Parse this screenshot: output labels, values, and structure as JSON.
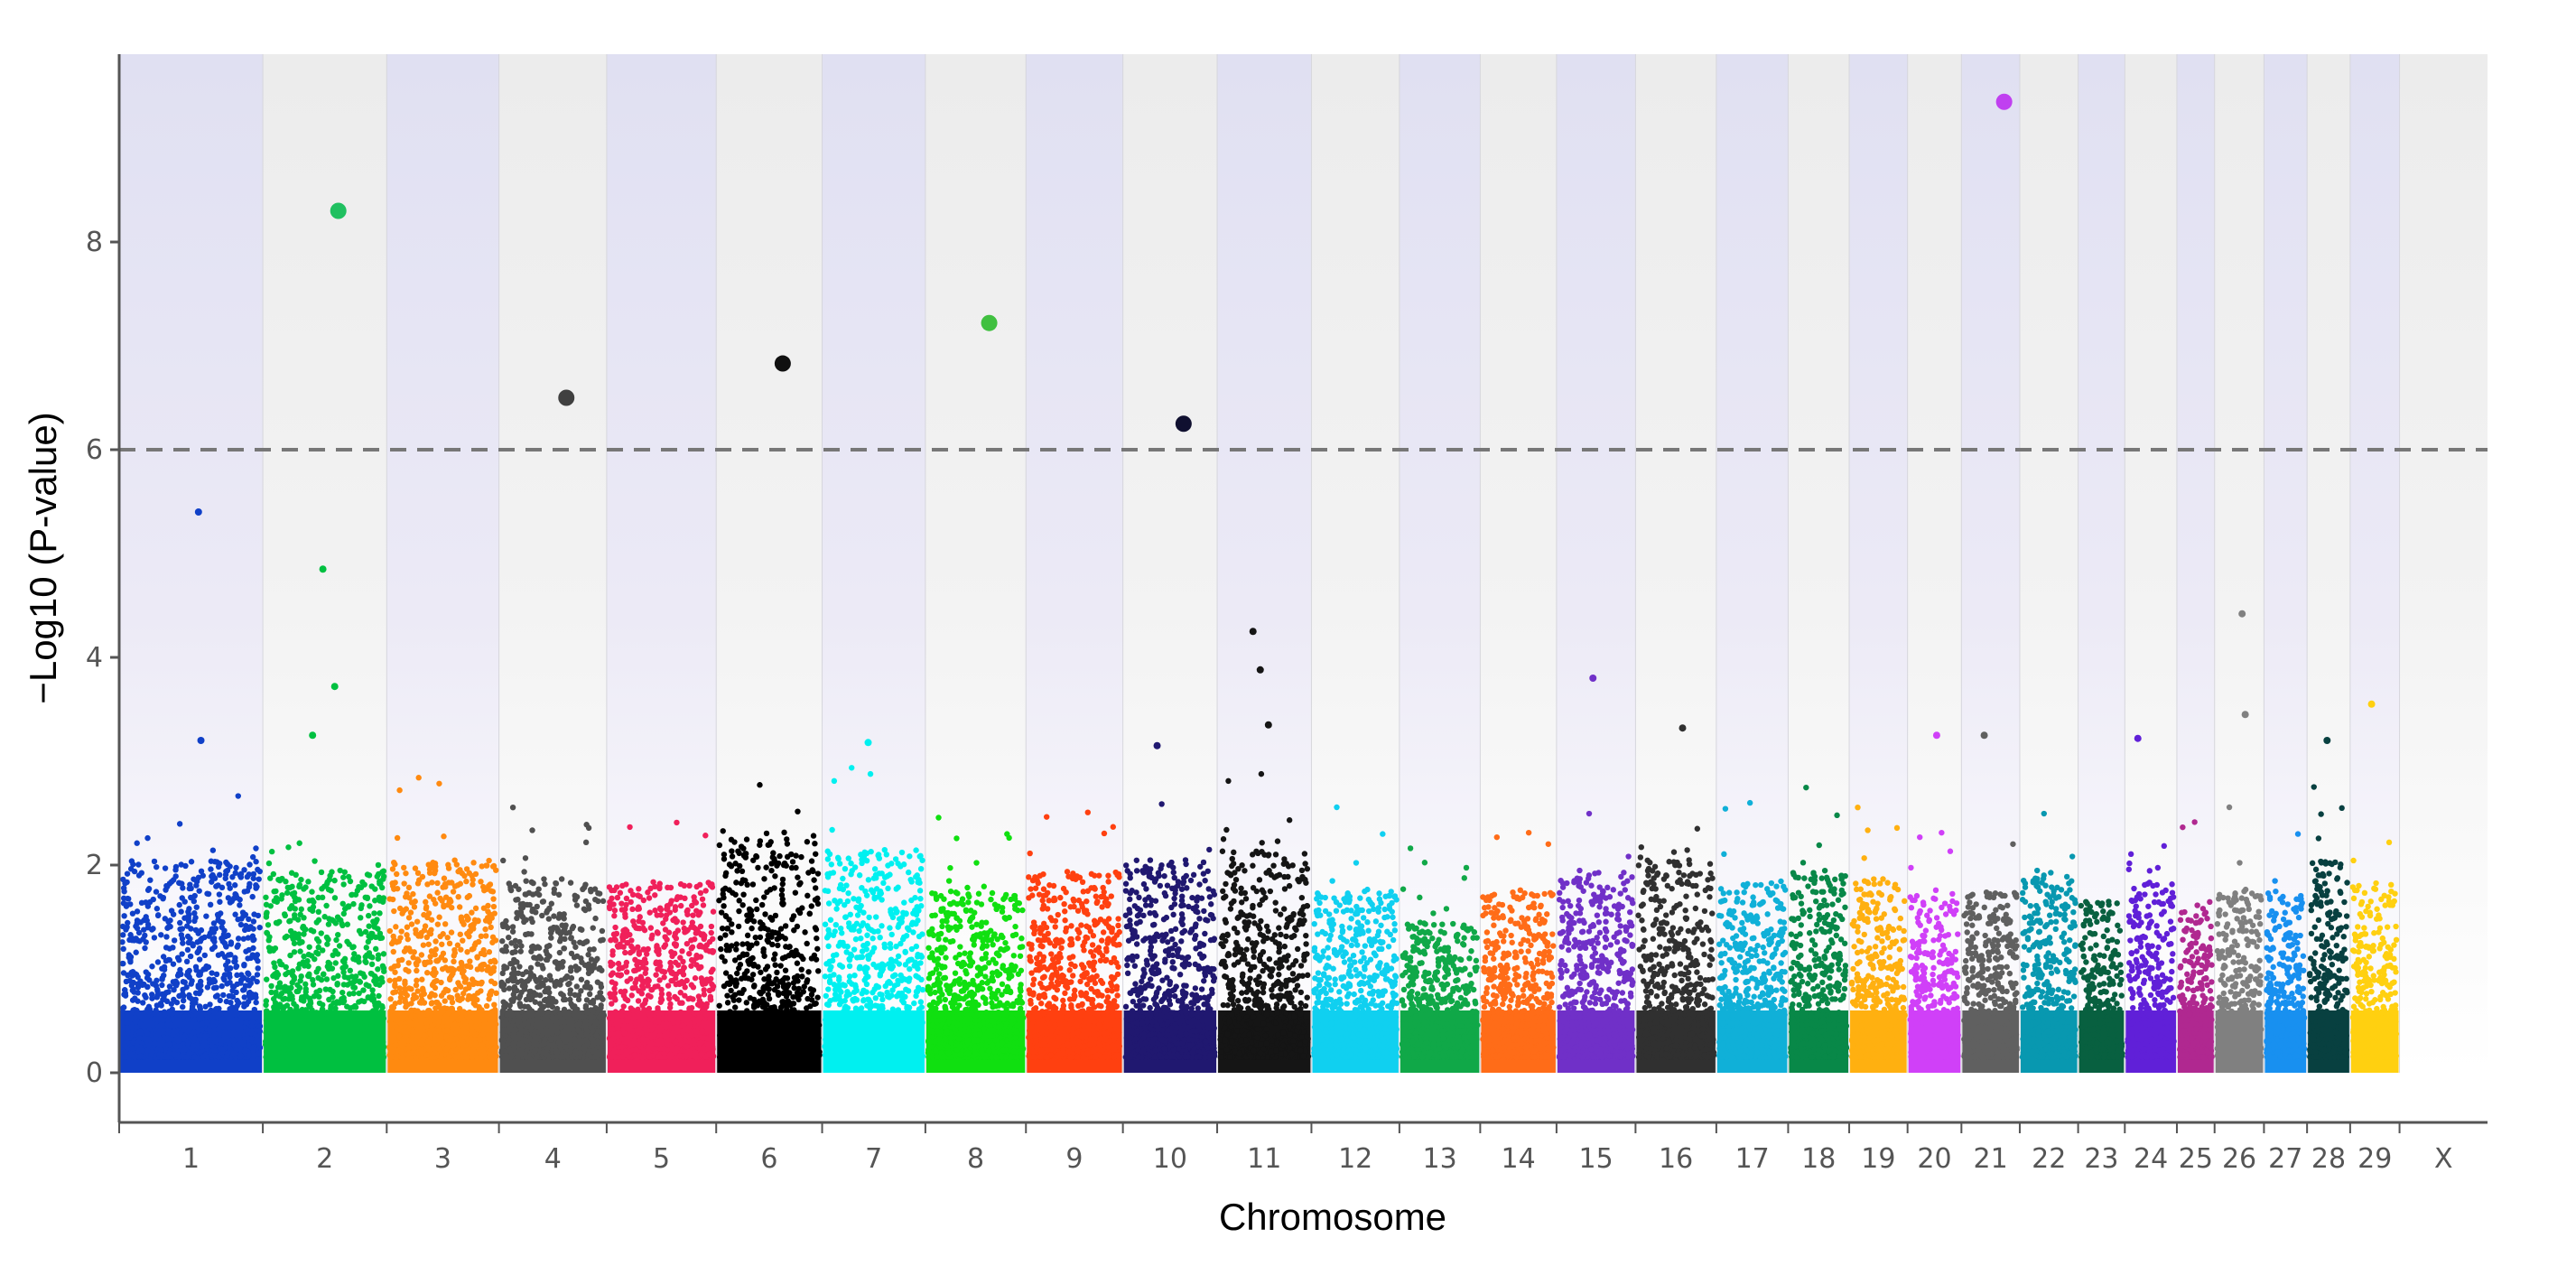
{
  "chart_data": {
    "type": "scatter",
    "subtype": "manhattan",
    "title": "",
    "xlabel": "Chromosome",
    "ylabel": "−Log10 (P-value)",
    "ylim": [
      -0.5,
      9.7
    ],
    "yticks": [
      "0",
      "2",
      "4",
      "6",
      "8"
    ],
    "threshold": 6,
    "grid": false,
    "chromosomes": [
      {
        "label": "1",
        "color": "#1040c8",
        "bulk_max": 1.9
      },
      {
        "label": "2",
        "color": "#00c040",
        "bulk_max": 1.8
      },
      {
        "label": "3",
        "color": "#ff8a10",
        "bulk_max": 1.9
      },
      {
        "label": "4",
        "color": "#505050",
        "bulk_max": 1.7
      },
      {
        "label": "5",
        "color": "#f0205a",
        "bulk_max": 1.7
      },
      {
        "label": "6",
        "color": "#000000",
        "bulk_max": 2.1
      },
      {
        "label": "7",
        "color": "#00f0f0",
        "bulk_max": 2.0
      },
      {
        "label": "8",
        "color": "#10e010",
        "bulk_max": 1.6
      },
      {
        "label": "9",
        "color": "#ff4010",
        "bulk_max": 1.8
      },
      {
        "label": "10",
        "color": "#201870",
        "bulk_max": 1.9
      },
      {
        "label": "11",
        "color": "#151515",
        "bulk_max": 2.0
      },
      {
        "label": "12",
        "color": "#10d0f0",
        "bulk_max": 1.6
      },
      {
        "label": "13",
        "color": "#10a848",
        "bulk_max": 1.3
      },
      {
        "label": "14",
        "color": "#ff6c18",
        "bulk_max": 1.6
      },
      {
        "label": "15",
        "color": "#7030c8",
        "bulk_max": 1.8
      },
      {
        "label": "16",
        "color": "#303030",
        "bulk_max": 1.9
      },
      {
        "label": "17",
        "color": "#10b0d8",
        "bulk_max": 1.7
      },
      {
        "label": "18",
        "color": "#088848",
        "bulk_max": 1.8
      },
      {
        "label": "19",
        "color": "#ffb010",
        "bulk_max": 1.7
      },
      {
        "label": "20",
        "color": "#d040f8",
        "bulk_max": 1.6
      },
      {
        "label": "21",
        "color": "#606060",
        "bulk_max": 1.6
      },
      {
        "label": "22",
        "color": "#0898b0",
        "bulk_max": 1.8
      },
      {
        "label": "23",
        "color": "#086040",
        "bulk_max": 1.5
      },
      {
        "label": "24",
        "color": "#6020d8",
        "bulk_max": 1.7
      },
      {
        "label": "25",
        "color": "#b02890",
        "bulk_max": 1.5
      },
      {
        "label": "26",
        "color": "#808080",
        "bulk_max": 1.6
      },
      {
        "label": "27",
        "color": "#1890f0",
        "bulk_max": 1.6
      },
      {
        "label": "28",
        "color": "#084040",
        "bulk_max": 1.9
      },
      {
        "label": "29",
        "color": "#ffd010",
        "bulk_max": 1.7
      },
      {
        "label": "X",
        "color": "#cccccc",
        "bulk_max": 0
      }
    ],
    "highlighted_snps": [
      {
        "chromosome": "21",
        "value": 9.35,
        "color": "#c040f0"
      },
      {
        "chromosome": "2",
        "value": 8.3,
        "color": "#20c060"
      },
      {
        "chromosome": "8",
        "value": 7.22,
        "color": "#40c040"
      },
      {
        "chromosome": "6",
        "value": 6.83,
        "color": "#101010"
      },
      {
        "chromosome": "4",
        "value": 6.5,
        "color": "#404040"
      },
      {
        "chromosome": "10",
        "value": 6.25,
        "color": "#101030"
      }
    ],
    "notable_points": [
      {
        "chromosome": "1",
        "value": 5.4
      },
      {
        "chromosome": "2",
        "value": 4.85
      },
      {
        "chromosome": "26",
        "value": 4.42
      },
      {
        "chromosome": "11",
        "value": 4.25
      },
      {
        "chromosome": "11",
        "value": 3.88
      },
      {
        "chromosome": "15",
        "value": 3.8
      },
      {
        "chromosome": "2",
        "value": 3.72
      },
      {
        "chromosome": "29",
        "value": 3.55
      },
      {
        "chromosome": "26",
        "value": 3.45
      },
      {
        "chromosome": "16",
        "value": 3.32
      },
      {
        "chromosome": "11",
        "value": 3.35
      },
      {
        "chromosome": "21",
        "value": 3.25
      },
      {
        "chromosome": "20",
        "value": 3.25
      },
      {
        "chromosome": "2",
        "value": 3.25
      },
      {
        "chromosome": "24",
        "value": 3.22
      },
      {
        "chromosome": "1",
        "value": 3.2
      },
      {
        "chromosome": "28",
        "value": 3.2
      },
      {
        "chromosome": "7",
        "value": 3.18
      },
      {
        "chromosome": "10",
        "value": 3.15
      }
    ]
  }
}
